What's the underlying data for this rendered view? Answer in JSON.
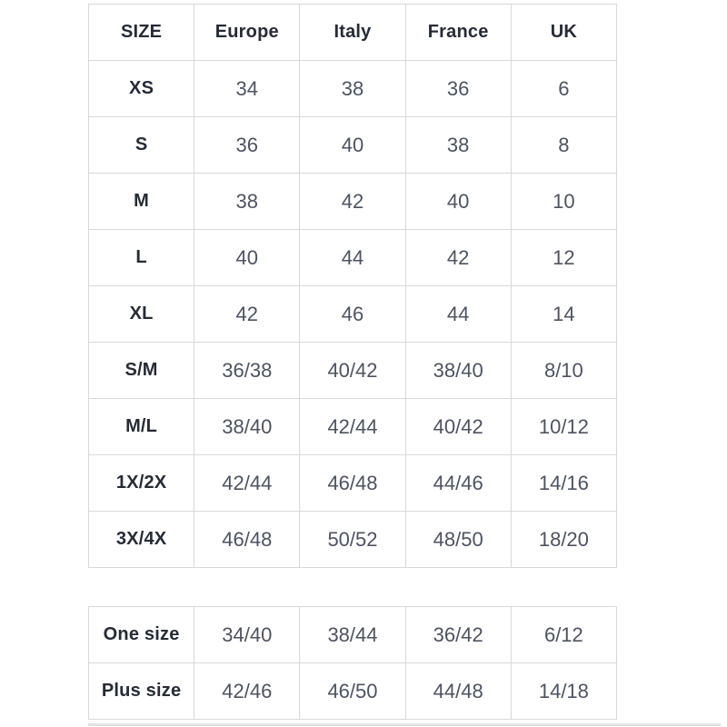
{
  "colors": {
    "background": "#ffffff",
    "border": "#d9d9d9",
    "header_text": "#262b35",
    "data_text": "#4d5360",
    "cutoff_line": "#e2e2e2"
  },
  "size_chart": {
    "columns": [
      "SIZE",
      "Europe",
      "Italy",
      "France",
      "UK"
    ],
    "rows": [
      {
        "label": "XS",
        "values": [
          "34",
          "38",
          "36",
          "6"
        ]
      },
      {
        "label": "S",
        "values": [
          "36",
          "40",
          "38",
          "8"
        ]
      },
      {
        "label": "M",
        "values": [
          "38",
          "42",
          "40",
          "10"
        ]
      },
      {
        "label": "L",
        "values": [
          "40",
          "44",
          "42",
          "12"
        ]
      },
      {
        "label": "XL",
        "values": [
          "42",
          "46",
          "44",
          "14"
        ]
      },
      {
        "label": "S/M",
        "values": [
          "36/38",
          "40/42",
          "38/40",
          "8/10"
        ]
      },
      {
        "label": "M/L",
        "values": [
          "38/40",
          "42/44",
          "40/42",
          "10/12"
        ]
      },
      {
        "label": "1X/2X",
        "values": [
          "42/44",
          "46/48",
          "44/46",
          "14/16"
        ]
      },
      {
        "label": "3X/4X",
        "values": [
          "46/48",
          "50/52",
          "48/50",
          "18/20"
        ]
      }
    ]
  },
  "special_size_chart": {
    "rows": [
      {
        "label": "One size",
        "values": [
          "34/40",
          "38/44",
          "36/42",
          "6/12"
        ]
      },
      {
        "label": "Plus size",
        "values": [
          "42/46",
          "46/50",
          "44/48",
          "14/18"
        ]
      }
    ]
  },
  "chart_data": [
    {
      "type": "table",
      "title": "Size conversion chart",
      "columns": [
        "SIZE",
        "Europe",
        "Italy",
        "France",
        "UK"
      ],
      "rows": [
        [
          "XS",
          "34",
          "38",
          "36",
          "6"
        ],
        [
          "S",
          "36",
          "40",
          "38",
          "8"
        ],
        [
          "M",
          "38",
          "42",
          "40",
          "10"
        ],
        [
          "L",
          "40",
          "44",
          "42",
          "12"
        ],
        [
          "XL",
          "42",
          "46",
          "44",
          "14"
        ],
        [
          "S/M",
          "36/38",
          "40/42",
          "38/40",
          "8/10"
        ],
        [
          "M/L",
          "38/40",
          "42/44",
          "40/42",
          "10/12"
        ],
        [
          "1X/2X",
          "42/44",
          "46/48",
          "44/46",
          "14/16"
        ],
        [
          "3X/4X",
          "46/48",
          "50/52",
          "48/50",
          "18/20"
        ]
      ],
      "layout": {
        "grid": true,
        "equal_columns": 5,
        "header_row_bold": true
      }
    },
    {
      "type": "table",
      "title": "Special sizes (no header row)",
      "columns": [
        "",
        "Europe",
        "Italy",
        "France",
        "UK"
      ],
      "rows": [
        [
          "One size",
          "34/40",
          "38/44",
          "36/42",
          "6/12"
        ],
        [
          "Plus size",
          "42/46",
          "46/50",
          "44/48",
          "14/18"
        ]
      ],
      "layout": {
        "grid": true,
        "equal_columns": 5,
        "label_column_bold": true
      }
    }
  ]
}
